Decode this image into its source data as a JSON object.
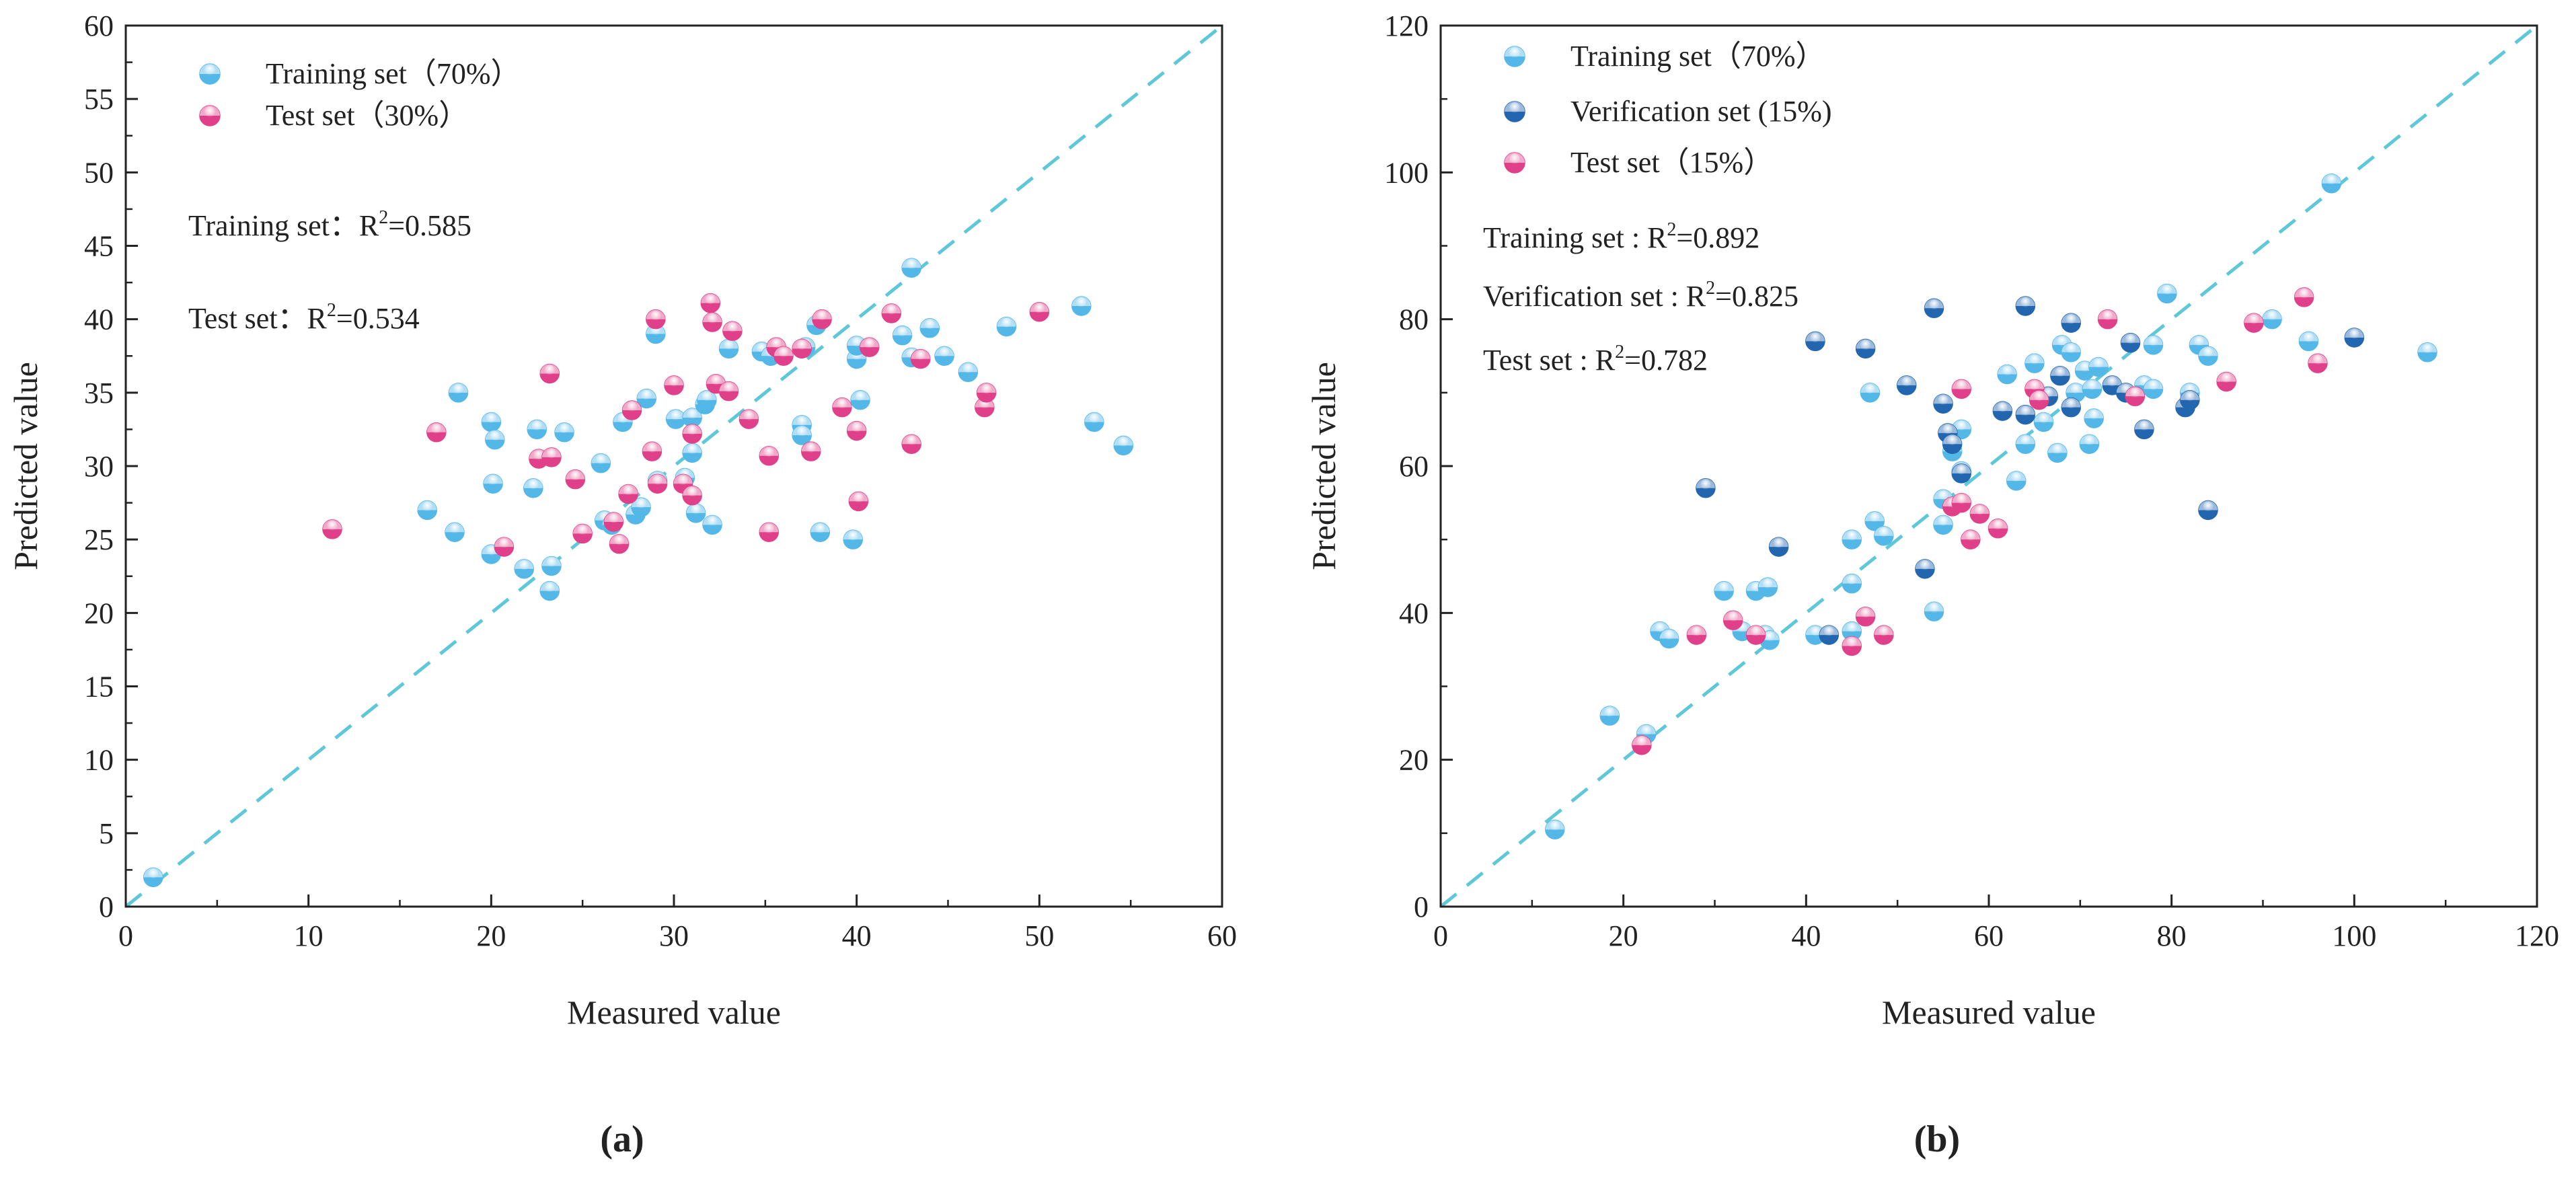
{
  "chart_data": [
    {
      "type": "scatter",
      "panel_label": "(a)",
      "title": "",
      "xlabel": "Measured value",
      "ylabel": "Predicted value",
      "xlim": [
        0,
        60
      ],
      "ylim": [
        0,
        60
      ],
      "xticks": [
        0,
        10,
        20,
        30,
        40,
        50,
        60
      ],
      "yticks": [
        0,
        5,
        10,
        15,
        20,
        25,
        30,
        35,
        40,
        45,
        50,
        55,
        60
      ],
      "tick_labels_x": [
        "0",
        "10",
        "20",
        "30",
        "40",
        "50",
        "60"
      ],
      "tick_labels_y": [
        "0",
        "5",
        "10",
        "15",
        "20",
        "25",
        "30",
        "35",
        "40",
        "45",
        "50",
        "55",
        "60"
      ],
      "reference_line": {
        "style": "dashed",
        "from": [
          0,
          0
        ],
        "to": [
          60,
          60
        ],
        "color": "#5ec8d8"
      },
      "grid": false,
      "legend_position": "top-left",
      "annotations": [
        {
          "label": "Training set：R",
          "sup": "2",
          "value": "=0.585"
        },
        {
          "label": "Test set：R",
          "sup": "2",
          "value": "=0.534"
        }
      ],
      "series": [
        {
          "name": "Training set（70%）",
          "color": "#53b7e8",
          "points": [
            [
              1.5,
              2
            ],
            [
              16.5,
              27
            ],
            [
              18,
              25.5
            ],
            [
              18.2,
              35
            ],
            [
              20,
              33
            ],
            [
              20.1,
              28.8
            ],
            [
              20.2,
              31.8
            ],
            [
              20,
              24
            ],
            [
              21.8,
              23
            ],
            [
              22.3,
              28.5
            ],
            [
              22.5,
              32.5
            ],
            [
              23.2,
              21.5
            ],
            [
              23.3,
              23.2
            ],
            [
              24,
              32.3
            ],
            [
              26,
              30.2
            ],
            [
              26.2,
              26.3
            ],
            [
              26.6,
              26
            ],
            [
              27.2,
              33
            ],
            [
              27.9,
              26.7
            ],
            [
              28.2,
              27.2
            ],
            [
              28.5,
              34.6
            ],
            [
              29,
              39
            ],
            [
              29.1,
              29
            ],
            [
              30.1,
              33.2
            ],
            [
              30.6,
              29.2
            ],
            [
              31,
              30.9
            ],
            [
              31,
              33.3
            ],
            [
              31.2,
              26.8
            ],
            [
              31.7,
              34.2
            ],
            [
              31.8,
              34.5
            ],
            [
              32.1,
              26
            ],
            [
              33,
              38
            ],
            [
              34.8,
              37.8
            ],
            [
              35.3,
              37.5
            ],
            [
              37,
              32.8
            ],
            [
              37,
              32.1
            ],
            [
              37.2,
              38.1
            ],
            [
              37.8,
              39.6
            ],
            [
              38,
              25.5
            ],
            [
              39.8,
              25
            ],
            [
              40,
              37.3
            ],
            [
              40,
              38.2
            ],
            [
              40.2,
              34.5
            ],
            [
              42.5,
              38.9
            ],
            [
              43,
              37.4
            ],
            [
              43,
              43.5
            ],
            [
              44,
              39.4
            ],
            [
              44.8,
              37.5
            ],
            [
              46.1,
              36.4
            ],
            [
              48.2,
              39.5
            ],
            [
              52.3,
              40.9
            ],
            [
              53,
              33
            ],
            [
              54.6,
              31.4
            ]
          ]
        },
        {
          "name": "Test set（30%）",
          "color": "#e0408a",
          "points": [
            [
              11.3,
              25.7
            ],
            [
              17,
              32.3
            ],
            [
              20.7,
              24.5
            ],
            [
              22.6,
              30.5
            ],
            [
              23.2,
              36.3
            ],
            [
              23.3,
              30.6
            ],
            [
              24.6,
              29.1
            ],
            [
              25,
              25.4
            ],
            [
              26.7,
              26.2
            ],
            [
              27,
              24.7
            ],
            [
              27.5,
              28.1
            ],
            [
              27.7,
              33.8
            ],
            [
              28.8,
              31
            ],
            [
              29,
              40
            ],
            [
              29.1,
              28.8
            ],
            [
              30,
              35.5
            ],
            [
              30.5,
              28.8
            ],
            [
              31,
              32.2
            ],
            [
              31,
              28
            ],
            [
              32,
              41.1
            ],
            [
              32.1,
              39.8
            ],
            [
              32.3,
              35.6
            ],
            [
              33,
              35.1
            ],
            [
              33.2,
              39.2
            ],
            [
              34.1,
              33.2
            ],
            [
              35.2,
              30.7
            ],
            [
              35.2,
              25.5
            ],
            [
              35.6,
              38.1
            ],
            [
              36,
              37.5
            ],
            [
              37,
              38
            ],
            [
              37.5,
              31
            ],
            [
              38.1,
              40
            ],
            [
              39.2,
              34
            ],
            [
              40,
              32.4
            ],
            [
              40.1,
              27.6
            ],
            [
              40.7,
              38.1
            ],
            [
              41.9,
              40.4
            ],
            [
              43,
              31.5
            ],
            [
              43.5,
              37.3
            ],
            [
              47,
              34
            ],
            [
              47.1,
              35
            ],
            [
              50,
              40.5
            ]
          ]
        }
      ]
    },
    {
      "type": "scatter",
      "panel_label": "(b)",
      "title": "",
      "xlabel": "Measured value",
      "ylabel": "Predicted value",
      "xlim": [
        0,
        120
      ],
      "ylim": [
        0,
        120
      ],
      "xticks": [
        0,
        20,
        40,
        60,
        80,
        100,
        120
      ],
      "yticks": [
        0,
        20,
        40,
        60,
        80,
        100,
        120
      ],
      "tick_labels_x": [
        "0",
        "20",
        "40",
        "60",
        "80",
        "100",
        "120"
      ],
      "tick_labels_y": [
        "0",
        "20",
        "40",
        "60",
        "80",
        "100",
        "120"
      ],
      "reference_line": {
        "style": "dashed",
        "from": [
          0,
          0
        ],
        "to": [
          120,
          120
        ],
        "color": "#5ec8d8"
      },
      "grid": false,
      "legend_position": "top-left",
      "annotations": [
        {
          "label": "Training set : R",
          "sup": "2",
          "value": "=0.892"
        },
        {
          "label": "Verification set : R",
          "sup": "2",
          "value": "=0.825"
        },
        {
          "label": "Test set : R",
          "sup": "2",
          "value": "=0.782"
        }
      ],
      "series": [
        {
          "name": "Training set（70%）",
          "color": "#53b7e8",
          "points": [
            [
              12.5,
              10.5
            ],
            [
              18.5,
              26
            ],
            [
              22.5,
              23.5
            ],
            [
              24,
              37.5
            ],
            [
              25,
              36.5
            ],
            [
              31,
              43
            ],
            [
              33,
              37.5
            ],
            [
              34.5,
              43
            ],
            [
              35.5,
              37
            ],
            [
              35.8,
              43.5
            ],
            [
              36,
              36.3
            ],
            [
              41,
              37
            ],
            [
              45,
              44
            ],
            [
              45,
              37.5
            ],
            [
              45,
              50
            ],
            [
              47,
              70
            ],
            [
              47.5,
              52.5
            ],
            [
              48.5,
              50.5
            ],
            [
              54,
              40.2
            ],
            [
              55,
              52
            ],
            [
              55,
              55.5
            ],
            [
              56,
              62
            ],
            [
              57,
              59.3
            ],
            [
              57,
              65
            ],
            [
              62,
              72.5
            ],
            [
              63,
              58
            ],
            [
              64,
              63
            ],
            [
              65,
              74
            ],
            [
              66,
              66
            ],
            [
              67.5,
              61.8
            ],
            [
              68,
              76.5
            ],
            [
              69,
              75.5
            ],
            [
              69.5,
              70
            ],
            [
              70.5,
              73
            ],
            [
              71,
              63
            ],
            [
              71.3,
              70.5
            ],
            [
              71.5,
              66.5
            ],
            [
              72,
              73.5
            ],
            [
              77,
              71
            ],
            [
              78,
              76.5
            ],
            [
              78,
              70.5
            ],
            [
              79.5,
              83.5
            ],
            [
              82,
              70
            ],
            [
              83,
              76.5
            ],
            [
              84,
              75
            ],
            [
              91,
              80
            ],
            [
              95,
              77
            ],
            [
              97.5,
              98.5
            ],
            [
              108,
              75.5
            ]
          ]
        },
        {
          "name": "Verification set (15%)",
          "color": "#2366b0",
          "points": [
            [
              29,
              57
            ],
            [
              37,
              49
            ],
            [
              41,
              77
            ],
            [
              42.5,
              37
            ],
            [
              46.5,
              76
            ],
            [
              51,
              71
            ],
            [
              53,
              46
            ],
            [
              54,
              81.5
            ],
            [
              55,
              68.5
            ],
            [
              55.5,
              64.5
            ],
            [
              56,
              63
            ],
            [
              57,
              59
            ],
            [
              61.5,
              67.5
            ],
            [
              64,
              81.8
            ],
            [
              64,
              67
            ],
            [
              66.5,
              69.5
            ],
            [
              67.8,
              72.3
            ],
            [
              69,
              79.5
            ],
            [
              69,
              68
            ],
            [
              73.5,
              71
            ],
            [
              75,
              70
            ],
            [
              75.5,
              76.8
            ],
            [
              77,
              65
            ],
            [
              81.5,
              68
            ],
            [
              82,
              69
            ],
            [
              84,
              54
            ],
            [
              100,
              77.5
            ]
          ]
        },
        {
          "name": "Test set（15%）",
          "color": "#e0408a",
          "points": [
            [
              22,
              22
            ],
            [
              28,
              37
            ],
            [
              32,
              39
            ],
            [
              34.5,
              37
            ],
            [
              45,
              35.5
            ],
            [
              46.5,
              39.5
            ],
            [
              48.5,
              37
            ],
            [
              56,
              54.5
            ],
            [
              57,
              55
            ],
            [
              57,
              70.5
            ],
            [
              58,
              50
            ],
            [
              59,
              53.5
            ],
            [
              61,
              51.5
            ],
            [
              65,
              70.5
            ],
            [
              65.5,
              69
            ],
            [
              73,
              80
            ],
            [
              76,
              69.5
            ],
            [
              86,
              71.5
            ],
            [
              89,
              79.5
            ],
            [
              94.5,
              83
            ],
            [
              96,
              74
            ]
          ]
        }
      ]
    }
  ]
}
